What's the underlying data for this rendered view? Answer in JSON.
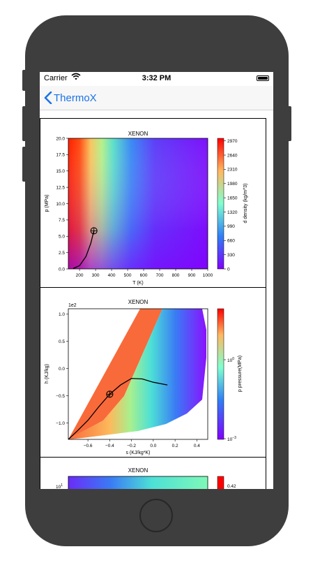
{
  "status_bar": {
    "carrier": "Carrier",
    "time": "3:32 PM",
    "icons": [
      "wifi-icon",
      "battery-icon"
    ]
  },
  "nav": {
    "back_label": "ThermoX",
    "back_icon": "chevron-left-icon"
  },
  "colors": {
    "accent": "#1a73e8",
    "phone_frame": "#3e3e3e"
  },
  "chart_data": [
    {
      "type": "heatmap",
      "title": "XENON",
      "xlabel": "T (K)",
      "ylabel": "p (MPa)",
      "xlim": [
        130,
        1000
      ],
      "ylim": [
        0,
        20
      ],
      "xticks": [
        "200",
        "300",
        "400",
        "500",
        "600",
        "700",
        "800",
        "900",
        "1000"
      ],
      "yticks": [
        "0.0",
        "2.5",
        "5.0",
        "7.5",
        "10.0",
        "12.5",
        "15.0",
        "17.5",
        "20.0"
      ],
      "colorbar_label": "d density (kg/m^3)",
      "colorbar_ticks": [
        "0",
        "330",
        "660",
        "990",
        "1320",
        "1650",
        "1980",
        "2310",
        "2640",
        "2970"
      ],
      "saturation_curve": {
        "T": [
          161,
          200,
          240,
          270,
          289.7
        ],
        "p": [
          0.08,
          0.5,
          1.9,
          3.9,
          5.84
        ]
      },
      "critical_point": {
        "T": 289.7,
        "p": 5.84
      }
    },
    {
      "type": "heatmap",
      "title": "XENON",
      "xlabel": "s (KJ/kg*K)",
      "ylabel": "h (KJ/kg)",
      "y_offset_label": "1e2",
      "xlim": [
        -0.78,
        0.5
      ],
      "ylim": [
        -1.3,
        1.1
      ],
      "xticks": [
        "-0.6",
        "-0.4",
        "-0.2",
        "0.0",
        "0.2",
        "0.4"
      ],
      "yticks": [
        "-1.0",
        "-0.5",
        "0.0",
        "0.5",
        "1.0"
      ],
      "colorbar_label": "p pressure(MPa)",
      "colorbar_ticks": [
        "10^-3",
        "10^0"
      ],
      "dome_curve": {
        "s": [
          -0.78,
          -0.7,
          -0.6,
          -0.5,
          -0.4,
          -0.3,
          -0.2,
          -0.1,
          0.0,
          0.13
        ],
        "h": [
          -1.3,
          -1.15,
          -0.95,
          -0.7,
          -0.47,
          -0.3,
          -0.18,
          -0.19,
          -0.25,
          -0.3
        ]
      },
      "critical_point": {
        "s": -0.4,
        "h": -0.47
      }
    },
    {
      "type": "heatmap",
      "title": "XENON",
      "y_offset_label": "10^1",
      "colorbar_ticks": [
        "0.42"
      ]
    }
  ]
}
